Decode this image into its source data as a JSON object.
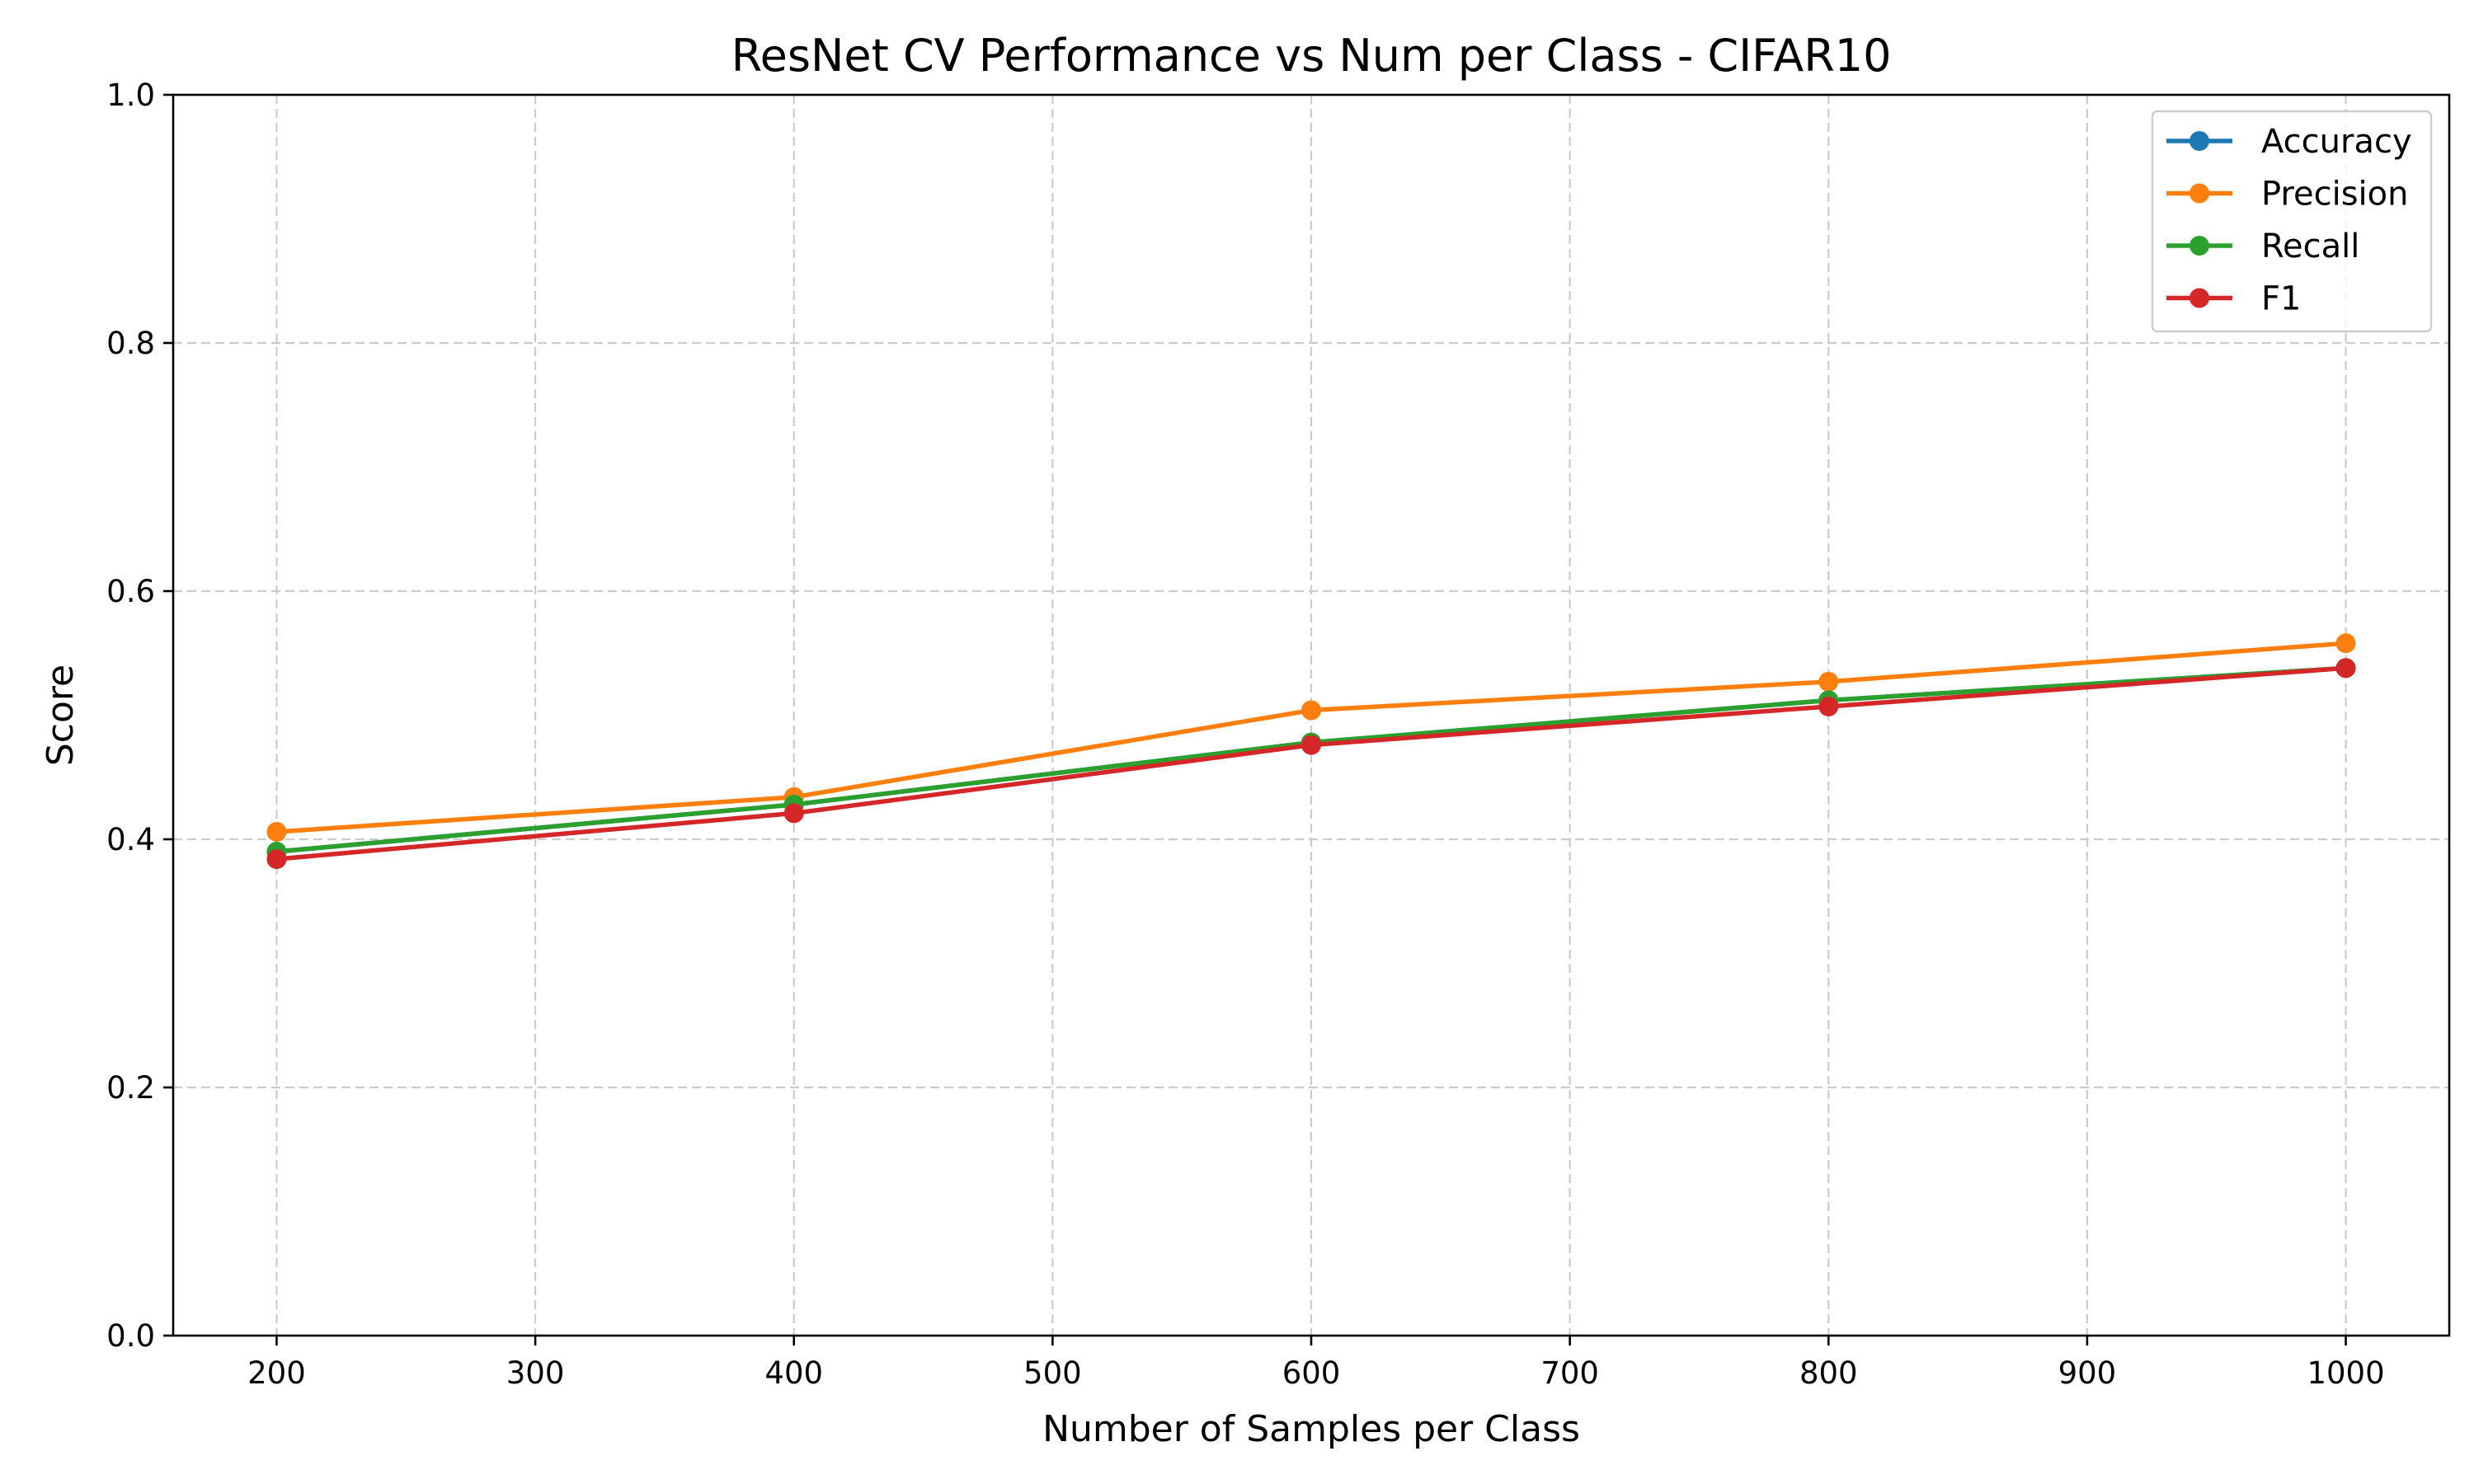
{
  "chart_data": {
    "type": "line",
    "title": "ResNet CV Performance vs Num per Class - CIFAR10",
    "xlabel": "Number of Samples per Class",
    "ylabel": "Score",
    "x": [
      200,
      400,
      600,
      800,
      1000
    ],
    "xlim": [
      160,
      1040
    ],
    "ylim": [
      0.0,
      1.0
    ],
    "xticks": [
      "200",
      "300",
      "400",
      "500",
      "600",
      "700",
      "800",
      "900",
      "1000"
    ],
    "yticks": [
      "0.0",
      "0.2",
      "0.4",
      "0.6",
      "0.8",
      "1.0"
    ],
    "grid": true,
    "legend_position": "top-right",
    "series": [
      {
        "name": "Accuracy",
        "color": "#1f77b4",
        "values": [
          0.39,
          0.428,
          0.478,
          0.512,
          0.538
        ]
      },
      {
        "name": "Precision",
        "color": "#ff7f0e",
        "values": [
          0.406,
          0.434,
          0.504,
          0.527,
          0.558
        ]
      },
      {
        "name": "Recall",
        "color": "#2ca02c",
        "values": [
          0.39,
          0.428,
          0.478,
          0.512,
          0.538
        ]
      },
      {
        "name": "F1",
        "color": "#d62728",
        "values": [
          0.384,
          0.421,
          0.476,
          0.507,
          0.538
        ]
      }
    ]
  }
}
